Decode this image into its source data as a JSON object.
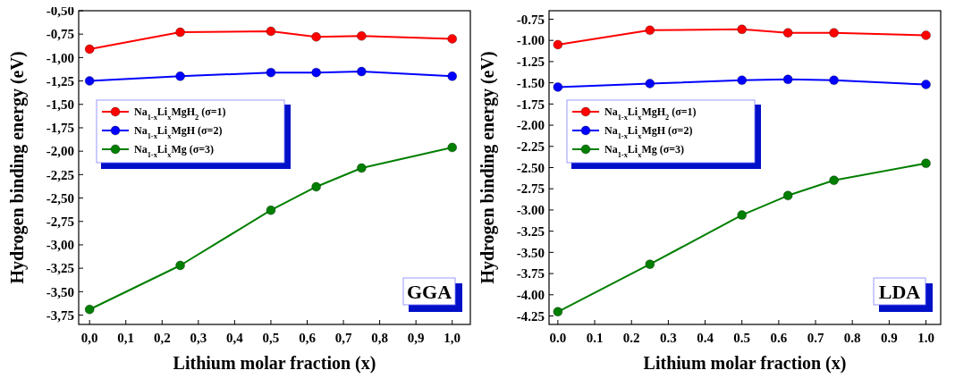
{
  "chart_data": [
    {
      "type": "line",
      "xlabel": "Lithium molar fraction (x)",
      "ylabel": "Hydrogen binding energy (eV)",
      "xlim": [
        -0.03,
        1.05
      ],
      "ylim": [
        -3.85,
        -0.5
      ],
      "xticks": [
        {
          "value": 0,
          "label": "0,0"
        },
        {
          "value": 0.1,
          "label": "0,1"
        },
        {
          "value": 0.2,
          "label": "0,2"
        },
        {
          "value": 0.3,
          "label": "0,3"
        },
        {
          "value": 0.4,
          "label": "0,4"
        },
        {
          "value": 0.5,
          "label": "0,5"
        },
        {
          "value": 0.6,
          "label": "0,6"
        },
        {
          "value": 0.7,
          "label": "0,7"
        },
        {
          "value": 0.8,
          "label": "0,8"
        },
        {
          "value": 0.9,
          "label": "0,9"
        },
        {
          "value": 1,
          "label": "1,0"
        }
      ],
      "yticks": [
        {
          "value": -0.5,
          "label": "-0,50"
        },
        {
          "value": -0.75,
          "label": "-0,75"
        },
        {
          "value": -1,
          "label": "-1,00"
        },
        {
          "value": -1.25,
          "label": "-1,25"
        },
        {
          "value": -1.5,
          "label": "-1,50"
        },
        {
          "value": -1.75,
          "label": "-1,75"
        },
        {
          "value": -2,
          "label": "-2,00"
        },
        {
          "value": -2.25,
          "label": "-2,25"
        },
        {
          "value": -2.5,
          "label": "-2,50"
        },
        {
          "value": -2.75,
          "label": "-2,75"
        },
        {
          "value": -3,
          "label": "-3,00"
        },
        {
          "value": -3.25,
          "label": "-3,25"
        },
        {
          "value": -3.5,
          "label": "-3,50"
        },
        {
          "value": -3.75,
          "label": "-3,75"
        }
      ],
      "x": [
        0,
        0.25,
        0.5,
        0.625,
        0.75,
        1
      ],
      "marker": "circle",
      "legend": "top left",
      "grid": false,
      "annotations": [
        "GGA"
      ],
      "series": [
        {
          "name": "Na$_{1-x}$Li$_{x}$MgH$_{2}$ (σ=1)",
          "color": "#ff0000",
          "values": [
            -0.91,
            -0.73,
            -0.72,
            -0.78,
            -0.77,
            -0.8
          ]
        },
        {
          "name": "Na$_{1-x}$Li$_{x}$MgH (σ=2)",
          "color": "#0000ff",
          "values": [
            -1.25,
            -1.2,
            -1.16,
            -1.16,
            -1.15,
            -1.2
          ]
        },
        {
          "name": "Na$_{1-x}$Li$_{x}$Mg (σ=3)",
          "color": "#007f00",
          "values": [
            -3.69,
            -3.22,
            -2.63,
            -2.38,
            -2.18,
            -1.96
          ]
        }
      ]
    },
    {
      "type": "line",
      "xlabel": "Lithium molar fraction (x)",
      "ylabel": "Hydrogen binding energy (eV)",
      "xlim": [
        -0.024,
        1.04
      ],
      "ylim": [
        -4.35,
        -0.65
      ],
      "xticks": [
        {
          "value": 0,
          "label": "0.0"
        },
        {
          "value": 0.1,
          "label": "0.1"
        },
        {
          "value": 0.2,
          "label": "0.2"
        },
        {
          "value": 0.3,
          "label": "0.3"
        },
        {
          "value": 0.4,
          "label": "0.4"
        },
        {
          "value": 0.5,
          "label": "0.5"
        },
        {
          "value": 0.6,
          "label": "0.6"
        },
        {
          "value": 0.7,
          "label": "0.7"
        },
        {
          "value": 0.8,
          "label": "0.8"
        },
        {
          "value": 0.9,
          "label": "0.9"
        },
        {
          "value": 1,
          "label": "1.0"
        }
      ],
      "yticks": [
        {
          "value": -0.75,
          "label": "-0.75"
        },
        {
          "value": -1,
          "label": "-1.00"
        },
        {
          "value": -1.25,
          "label": "-1.25"
        },
        {
          "value": -1.5,
          "label": "-1.50"
        },
        {
          "value": -1.75,
          "label": "-1.75"
        },
        {
          "value": -2,
          "label": "-2.00"
        },
        {
          "value": -2.25,
          "label": "-2.25"
        },
        {
          "value": -2.5,
          "label": "-2.50"
        },
        {
          "value": -2.75,
          "label": "-2.75"
        },
        {
          "value": -3,
          "label": "-3.00"
        },
        {
          "value": -3.25,
          "label": "-3.25"
        },
        {
          "value": -3.5,
          "label": "-3.50"
        },
        {
          "value": -3.75,
          "label": "-3.75"
        },
        {
          "value": -4,
          "label": "-4.00"
        },
        {
          "value": -4.25,
          "label": "-4.25"
        }
      ],
      "x": [
        0,
        0.25,
        0.5,
        0.625,
        0.75,
        1
      ],
      "marker": "circle",
      "legend": "top left",
      "grid": false,
      "annotations": [
        "LDA"
      ],
      "series": [
        {
          "name": "Na$_{1-x}$Li$_{x}$MgH$_{2}$ (σ=1)",
          "color": "#ff0000",
          "values": [
            -1.05,
            -0.88,
            -0.87,
            -0.91,
            -0.91,
            -0.94
          ]
        },
        {
          "name": "Na$_{1-x}$Li$_{x}$MgH (σ=2)",
          "color": "#0000ff",
          "values": [
            -1.55,
            -1.51,
            -1.47,
            -1.46,
            -1.47,
            -1.52
          ]
        },
        {
          "name": "Na$_{1-x}$Li$_{x}$Mg (σ=3)",
          "color": "#007f00",
          "values": [
            -4.2,
            -3.64,
            -3.06,
            -2.83,
            -2.65,
            -2.45
          ]
        }
      ]
    }
  ]
}
